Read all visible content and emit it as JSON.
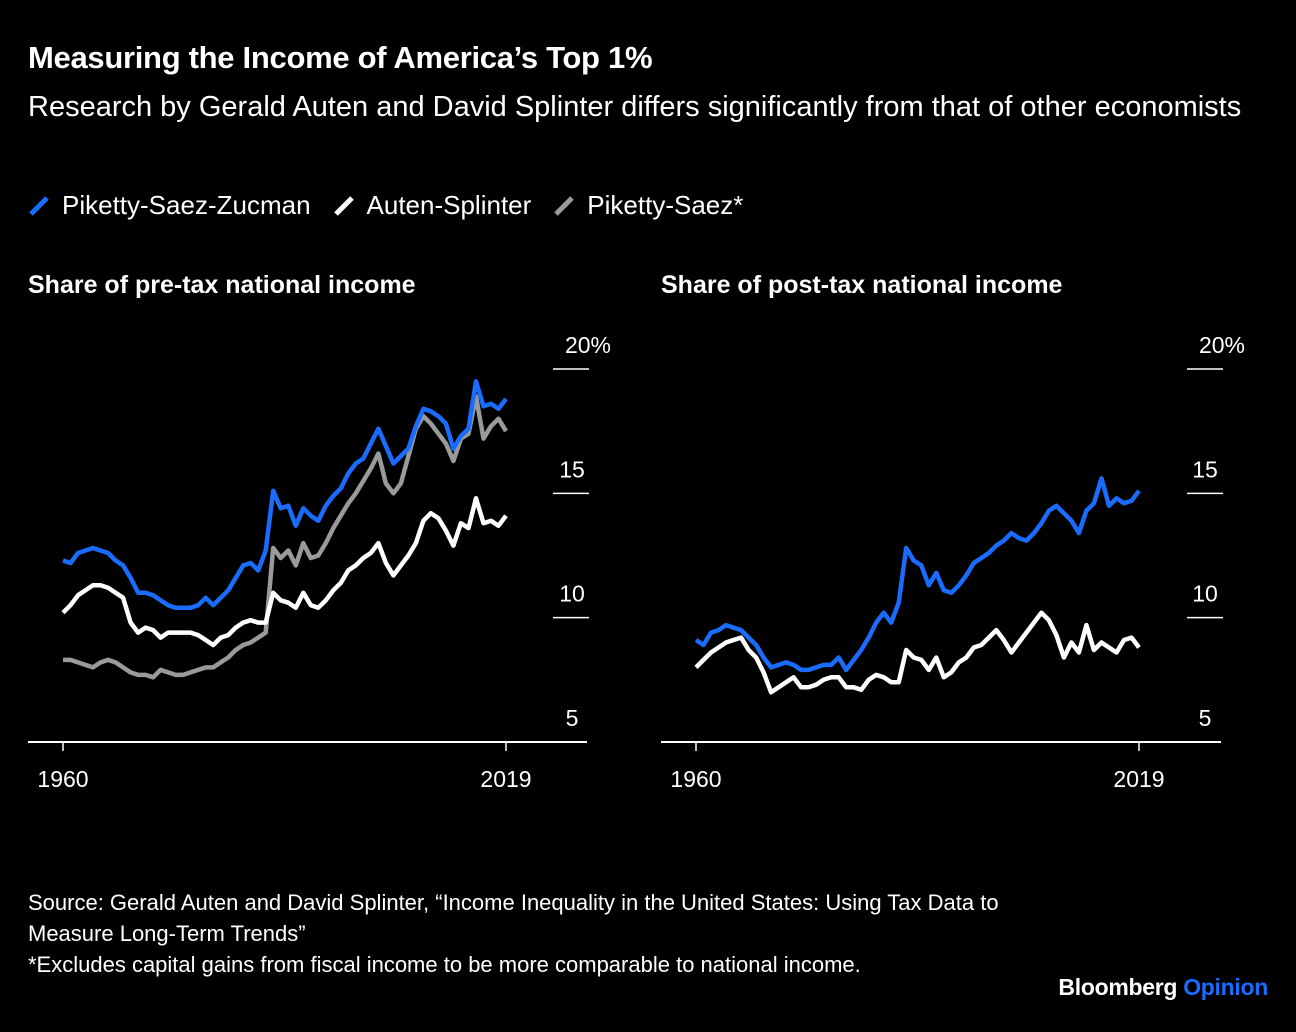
{
  "header": {
    "title": "Measuring the Income of America’s Top 1%",
    "subtitle": "Research by Gerald Auten and David Splinter differs significantly from that of other economists"
  },
  "legend": [
    {
      "label": "Piketty-Saez-Zucman",
      "color": "#1a6cff"
    },
    {
      "label": "Auten-Splinter",
      "color": "#ffffff"
    },
    {
      "label": "Piketty-Saez*",
      "color": "#9a9a9a"
    }
  ],
  "footer": {
    "source": "Source: Gerald Auten and David Splinter, “Income Inequality in the United States: Using Tax Data to Measure Long-Term Trends”",
    "note": "*Excludes capital gains from fiscal income to be more comparable to national income.",
    "brand_main": "Bloomberg",
    "brand_sub": "Opinion",
    "brand_sub_color": "#1a6cff"
  },
  "chart_data": [
    {
      "type": "line",
      "title": "Share of pre-tax national income",
      "x_start": 1960,
      "x_end": 2019,
      "x_ticks": [
        "1960",
        "2019"
      ],
      "ylim": [
        5,
        20
      ],
      "y_ticks": [
        "5",
        "10",
        "15",
        "20%"
      ],
      "y_tick_values": [
        5,
        10,
        15,
        20
      ],
      "grid": "tick marks at right",
      "series": [
        {
          "name": "Piketty-Saez-Zucman",
          "color": "#1a6cff",
          "values": [
            12.3,
            12.2,
            12.6,
            12.7,
            12.8,
            12.7,
            12.6,
            12.3,
            12.1,
            11.6,
            11.0,
            11.0,
            10.9,
            10.7,
            10.5,
            10.4,
            10.4,
            10.4,
            10.5,
            10.8,
            10.5,
            10.8,
            11.1,
            11.6,
            12.1,
            12.2,
            11.9,
            12.7,
            15.1,
            14.4,
            14.5,
            13.7,
            14.4,
            14.1,
            13.9,
            14.5,
            14.9,
            15.2,
            15.8,
            16.2,
            16.4,
            17.0,
            17.6,
            16.9,
            16.2,
            16.5,
            16.8,
            17.7,
            18.4,
            18.3,
            18.1,
            17.8,
            16.8,
            17.3,
            17.6,
            19.5,
            18.5,
            18.6,
            18.4,
            18.8
          ]
        },
        {
          "name": "Auten-Splinter",
          "color": "#ffffff",
          "values": [
            10.2,
            10.5,
            10.9,
            11.1,
            11.3,
            11.3,
            11.2,
            11.0,
            10.8,
            9.8,
            9.4,
            9.6,
            9.5,
            9.2,
            9.4,
            9.4,
            9.4,
            9.4,
            9.3,
            9.1,
            8.9,
            9.2,
            9.3,
            9.6,
            9.8,
            9.9,
            9.8,
            9.8,
            11.0,
            10.7,
            10.6,
            10.4,
            11.0,
            10.5,
            10.4,
            10.7,
            11.1,
            11.4,
            11.9,
            12.1,
            12.4,
            12.6,
            13.0,
            12.2,
            11.7,
            12.1,
            12.5,
            13.0,
            13.9,
            14.2,
            14.0,
            13.5,
            12.9,
            13.8,
            13.6,
            14.8,
            13.8,
            13.9,
            13.7,
            14.1
          ]
        },
        {
          "name": "Piketty-Saez*",
          "color": "#9a9a9a",
          "values": [
            8.3,
            8.3,
            8.2,
            8.1,
            8.0,
            8.2,
            8.3,
            8.2,
            8.0,
            7.8,
            7.7,
            7.7,
            7.6,
            7.9,
            7.8,
            7.7,
            7.7,
            7.8,
            7.9,
            8.0,
            8.0,
            8.2,
            8.4,
            8.7,
            8.9,
            9.0,
            9.2,
            9.4,
            12.8,
            12.4,
            12.7,
            12.1,
            13.0,
            12.4,
            12.5,
            13.0,
            13.6,
            14.1,
            14.6,
            15.0,
            15.5,
            16.0,
            16.6,
            15.4,
            15.0,
            15.4,
            16.5,
            17.6,
            18.1,
            17.8,
            17.4,
            17.0,
            16.3,
            17.2,
            17.4,
            18.9,
            17.2,
            17.7,
            18.0,
            17.5
          ]
        }
      ]
    },
    {
      "type": "line",
      "title": "Share of post-tax national income",
      "x_start": 1960,
      "x_end": 2019,
      "x_ticks": [
        "1960",
        "2019"
      ],
      "ylim": [
        5,
        20
      ],
      "y_ticks": [
        "5",
        "10",
        "15",
        "20%"
      ],
      "y_tick_values": [
        5,
        10,
        15,
        20
      ],
      "grid": "tick marks at right",
      "series": [
        {
          "name": "Piketty-Saez-Zucman",
          "color": "#1a6cff",
          "values": [
            9.1,
            8.9,
            9.4,
            9.5,
            9.7,
            9.6,
            9.5,
            9.2,
            8.9,
            8.4,
            8.0,
            8.1,
            8.2,
            8.1,
            7.9,
            7.9,
            8.0,
            8.1,
            8.1,
            8.4,
            7.9,
            8.3,
            8.7,
            9.2,
            9.8,
            10.2,
            9.8,
            10.6,
            12.8,
            12.3,
            12.1,
            11.3,
            11.8,
            11.1,
            11.0,
            11.3,
            11.7,
            12.2,
            12.4,
            12.6,
            12.9,
            13.1,
            13.4,
            13.2,
            13.1,
            13.4,
            13.8,
            14.3,
            14.5,
            14.2,
            13.9,
            13.4,
            14.3,
            14.6,
            15.6,
            14.5,
            14.8,
            14.6,
            14.7,
            15.1
          ]
        },
        {
          "name": "Auten-Splinter",
          "color": "#ffffff",
          "values": [
            8.0,
            8.3,
            8.6,
            8.8,
            9.0,
            9.1,
            9.2,
            8.7,
            8.4,
            7.8,
            7.0,
            7.2,
            7.4,
            7.6,
            7.2,
            7.2,
            7.3,
            7.5,
            7.6,
            7.6,
            7.2,
            7.2,
            7.1,
            7.5,
            7.7,
            7.6,
            7.4,
            7.4,
            8.7,
            8.4,
            8.3,
            7.9,
            8.4,
            7.6,
            7.8,
            8.2,
            8.4,
            8.8,
            8.9,
            9.2,
            9.5,
            9.1,
            8.6,
            9.0,
            9.4,
            9.8,
            10.2,
            9.9,
            9.3,
            8.4,
            9.0,
            8.6,
            9.7,
            8.7,
            9.0,
            8.8,
            8.6,
            9.1,
            9.2,
            8.8
          ]
        }
      ]
    }
  ]
}
